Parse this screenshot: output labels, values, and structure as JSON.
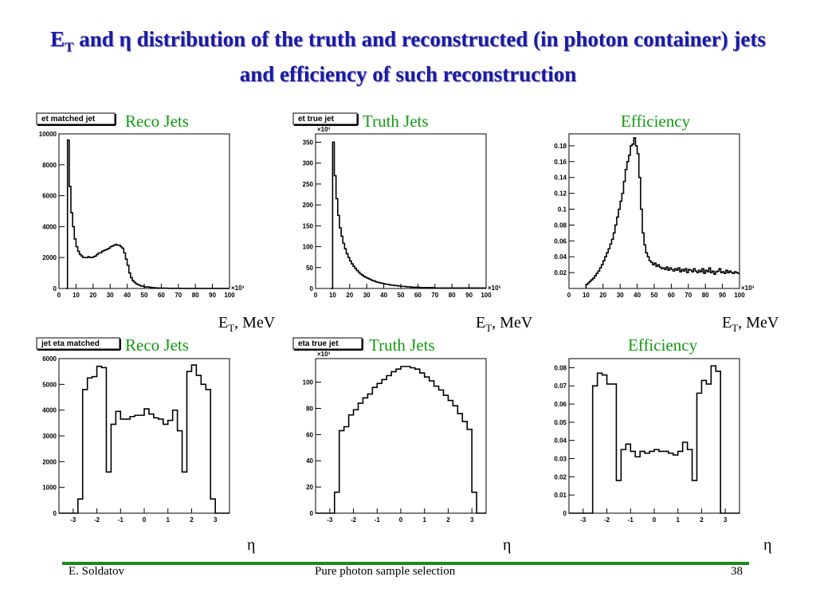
{
  "slide": {
    "title_part1": "E",
    "title_sub": "T",
    "title_part2": " and η distribution of the truth and reconstructed (in photon container) jets and efficiency of such reconstruction"
  },
  "footer": {
    "author": "E. Soldatov",
    "center": "Pure photon sample selection",
    "page": "38"
  },
  "colors": {
    "title": "#1a1aa8",
    "plot_label": "#109a10",
    "footer_bar": "#1b8a1b"
  },
  "chart_data": [
    {
      "id": "et-reco",
      "type": "histogram",
      "stat_title": "et matched jet",
      "label": "Reco Jets",
      "xlabel_main": "E",
      "xlabel_sub": "T",
      "xlabel_rest": ", MeV",
      "x_exponent": "×10³",
      "xlim": [
        0,
        100
      ],
      "ylim": [
        0,
        10000
      ],
      "xticks": [
        0,
        10,
        20,
        30,
        40,
        50,
        60,
        70,
        80,
        90,
        100
      ],
      "yticks": [
        0,
        2000,
        4000,
        6000,
        8000,
        10000
      ],
      "x_start": 4,
      "bin_width": 1,
      "values": [
        0,
        9600,
        6600,
        4900,
        4000,
        3200,
        2700,
        2400,
        2200,
        2100,
        2000,
        2000,
        2000,
        2050,
        2000,
        2000,
        2050,
        2100,
        2200,
        2300,
        2300,
        2400,
        2450,
        2500,
        2550,
        2600,
        2700,
        2750,
        2800,
        2850,
        2800,
        2800,
        2700,
        2600,
        2300,
        1900,
        1500,
        1000,
        700,
        500,
        400,
        300,
        250,
        200,
        150,
        150,
        100,
        100,
        100,
        80,
        60,
        50,
        40,
        30,
        30,
        20,
        20,
        20,
        15,
        15,
        10,
        10,
        10,
        10,
        10,
        8,
        8,
        5,
        5,
        5,
        5,
        5,
        5,
        5,
        5,
        5,
        5,
        5,
        5,
        5,
        5,
        5,
        5,
        5,
        5,
        5,
        5,
        5,
        5,
        5,
        5,
        5,
        5,
        5,
        5,
        5
      ]
    },
    {
      "id": "et-truth",
      "type": "histogram",
      "stat_title": "et true jet",
      "label": "Truth Jets",
      "xlabel_main": "E",
      "xlabel_sub": "T",
      "xlabel_rest": ", MeV",
      "x_exponent": "×10³",
      "y_exponent": "×10³",
      "xlim": [
        0,
        100
      ],
      "ylim": [
        0,
        370
      ],
      "xticks": [
        0,
        10,
        20,
        30,
        40,
        50,
        60,
        70,
        80,
        90,
        100
      ],
      "yticks": [
        0,
        50,
        100,
        150,
        200,
        250,
        300,
        350
      ],
      "x_start": 9,
      "bin_width": 1,
      "values": [
        0,
        350,
        270,
        215,
        175,
        145,
        125,
        108,
        95,
        83,
        74,
        66,
        59,
        53,
        48,
        43,
        39,
        35,
        32,
        29,
        27,
        25,
        23,
        21,
        19,
        18,
        16,
        15,
        14,
        13,
        12,
        11,
        10,
        10,
        9,
        8,
        8,
        7,
        7,
        6,
        6,
        5,
        5,
        5,
        4,
        4,
        4,
        3,
        3,
        3,
        3,
        3,
        2,
        2,
        2,
        2,
        2,
        2,
        2,
        2,
        2,
        1,
        1,
        1,
        1,
        1,
        1,
        1,
        1,
        1,
        1,
        1,
        1,
        1,
        1,
        1,
        1,
        1,
        1,
        1,
        1,
        1,
        1,
        1,
        1,
        1,
        1,
        1,
        1,
        1,
        1
      ]
    },
    {
      "id": "et-efficiency",
      "type": "histogram",
      "stat_title": "",
      "label": "Efficiency",
      "xlabel_main": "E",
      "xlabel_sub": "T",
      "xlabel_rest": ", MeV",
      "x_exponent": "×10³",
      "xlim": [
        0,
        100
      ],
      "ylim": [
        0,
        0.195
      ],
      "xticks": [
        0,
        10,
        20,
        30,
        40,
        50,
        60,
        70,
        80,
        90,
        100
      ],
      "yticks": [
        0.02,
        0.04,
        0.06,
        0.08,
        0.1,
        0.12,
        0.14,
        0.16,
        0.18
      ],
      "x_start": 10,
      "bin_width": 1,
      "values": [
        0.005,
        0.007,
        0.009,
        0.011,
        0.013,
        0.016,
        0.019,
        0.022,
        0.026,
        0.03,
        0.035,
        0.04,
        0.045,
        0.05,
        0.056,
        0.062,
        0.07,
        0.08,
        0.09,
        0.1,
        0.11,
        0.12,
        0.135,
        0.15,
        0.16,
        0.168,
        0.18,
        0.182,
        0.19,
        0.18,
        0.17,
        0.14,
        0.1,
        0.07,
        0.055,
        0.045,
        0.04,
        0.035,
        0.033,
        0.03,
        0.032,
        0.028,
        0.03,
        0.027,
        0.025,
        0.026,
        0.024,
        0.027,
        0.023,
        0.026,
        0.024,
        0.022,
        0.025,
        0.023,
        0.026,
        0.021,
        0.024,
        0.022,
        0.025,
        0.02,
        0.024,
        0.023,
        0.021,
        0.025,
        0.022,
        0.02,
        0.023,
        0.021,
        0.025,
        0.019,
        0.023,
        0.021,
        0.026,
        0.02,
        0.022,
        0.018,
        0.021,
        0.022,
        0.025,
        0.02,
        0.021,
        0.019,
        0.023,
        0.02,
        0.022,
        0.02,
        0.019,
        0.021,
        0.02,
        0.019
      ]
    },
    {
      "id": "eta-reco",
      "type": "histogram",
      "stat_title": "jet eta matched",
      "label": "Reco Jets",
      "xlabel_main": "η",
      "xlim": [
        -3.6,
        3.6
      ],
      "ylim": [
        0,
        6000
      ],
      "xticks": [
        -3,
        -2,
        -1,
        0,
        1,
        2,
        3
      ],
      "yticks": [
        0,
        1000,
        2000,
        3000,
        4000,
        5000,
        6000
      ],
      "x_start": -3.6,
      "bin_width": 0.2,
      "values": [
        0,
        0,
        0,
        0,
        550,
        4800,
        5250,
        5300,
        5700,
        5650,
        1600,
        3450,
        3950,
        3650,
        3650,
        3750,
        3800,
        3800,
        4050,
        3850,
        3700,
        3650,
        3450,
        3600,
        4000,
        3200,
        1600,
        5500,
        5750,
        5350,
        5000,
        4800,
        550,
        0,
        0,
        0
      ]
    },
    {
      "id": "eta-truth",
      "type": "histogram",
      "stat_title": "eta true jet",
      "label": "Truth Jets",
      "xlabel_main": "η",
      "y_exponent": "×10³",
      "xlim": [
        -3.6,
        3.6
      ],
      "ylim": [
        0,
        118
      ],
      "xticks": [
        -3,
        -2,
        -1,
        0,
        1,
        2,
        3
      ],
      "yticks": [
        0,
        20,
        40,
        60,
        80,
        100
      ],
      "x_start": -3.6,
      "bin_width": 0.2,
      "values": [
        0,
        0,
        0,
        0,
        16,
        63,
        66,
        75,
        79,
        84,
        88,
        91,
        96,
        99,
        102,
        105,
        108,
        110,
        112,
        112,
        111,
        110,
        107,
        104,
        101,
        97,
        94,
        90,
        86,
        82,
        76,
        70,
        64,
        16,
        0,
        0
      ]
    },
    {
      "id": "eta-efficiency",
      "type": "histogram",
      "stat_title": "",
      "label": "Efficiency",
      "xlabel_main": "η",
      "xlim": [
        -3.6,
        3.6
      ],
      "ylim": [
        0,
        0.085
      ],
      "xticks": [
        -3,
        -2,
        -1,
        0,
        1,
        2,
        3
      ],
      "yticks": [
        0,
        0.01,
        0.02,
        0.03,
        0.04,
        0.05,
        0.06,
        0.07,
        0.08
      ],
      "x_start": -3.6,
      "bin_width": 0.2,
      "values": [
        0,
        0,
        0,
        0,
        0,
        0.07,
        0.077,
        0.076,
        0.071,
        0.071,
        0.018,
        0.035,
        0.038,
        0.034,
        0.031,
        0.034,
        0.033,
        0.034,
        0.035,
        0.034,
        0.034,
        0.033,
        0.032,
        0.034,
        0.039,
        0.035,
        0.018,
        0.066,
        0.073,
        0.071,
        0.081,
        0.078,
        0,
        0,
        0,
        0
      ]
    }
  ]
}
